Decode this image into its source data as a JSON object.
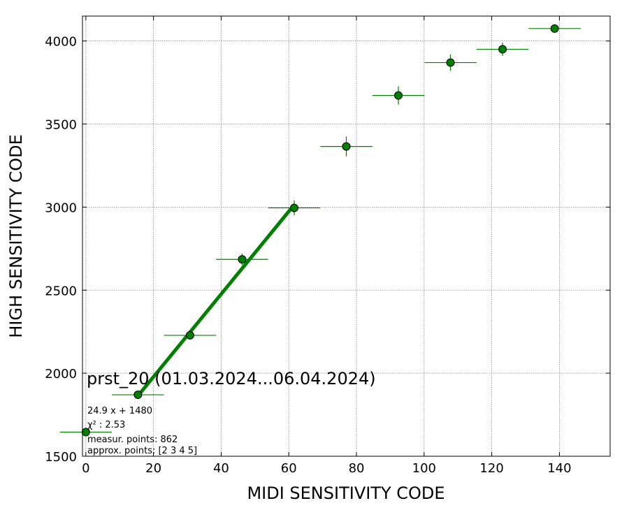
{
  "chart_data": {
    "type": "scatter",
    "xlabel": "MIDI SENSITIVITY CODE",
    "ylabel": "HIGH SENSITIVITY CODE",
    "xlim": [
      -1,
      155
    ],
    "ylim": [
      1500,
      4150
    ],
    "xticks": [
      0,
      20,
      40,
      60,
      80,
      100,
      120,
      140
    ],
    "yticks": [
      1500,
      2000,
      2500,
      3000,
      3500,
      4000
    ],
    "grid": true,
    "colors": {
      "points": "#008000",
      "fit": "#008000",
      "grid": "#888888"
    },
    "points": [
      {
        "x": 0.0,
        "y": 1645,
        "xerr": 7.7,
        "yerr": 10
      },
      {
        "x": 15.4,
        "y": 1870,
        "xerr": 7.7,
        "yerr": 15
      },
      {
        "x": 30.8,
        "y": 2228,
        "xerr": 7.7,
        "yerr": 20
      },
      {
        "x": 46.2,
        "y": 2685,
        "xerr": 7.7,
        "yerr": 35
      },
      {
        "x": 61.6,
        "y": 2995,
        "xerr": 7.7,
        "yerr": 45
      },
      {
        "x": 77.0,
        "y": 3365,
        "xerr": 7.7,
        "yerr": 60
      },
      {
        "x": 92.4,
        "y": 3672,
        "xerr": 7.7,
        "yerr": 55
      },
      {
        "x": 107.8,
        "y": 3870,
        "xerr": 7.7,
        "yerr": 50
      },
      {
        "x": 123.2,
        "y": 3950,
        "xerr": 7.7,
        "yerr": 40
      },
      {
        "x": 138.6,
        "y": 4075,
        "xerr": 7.7,
        "yerr": 20
      }
    ],
    "fit": {
      "slope": 24.9,
      "intercept": 1480,
      "x_range": [
        15.4,
        61.6
      ]
    },
    "annotation_title": "prst_20 (01.03.2024...06.04.2024)",
    "annotation_lines": [
      "24.9 x + 1480",
      "χ² : 2.53",
      "measur. points: 862",
      "approx. points: [2 3 4 5]"
    ]
  }
}
